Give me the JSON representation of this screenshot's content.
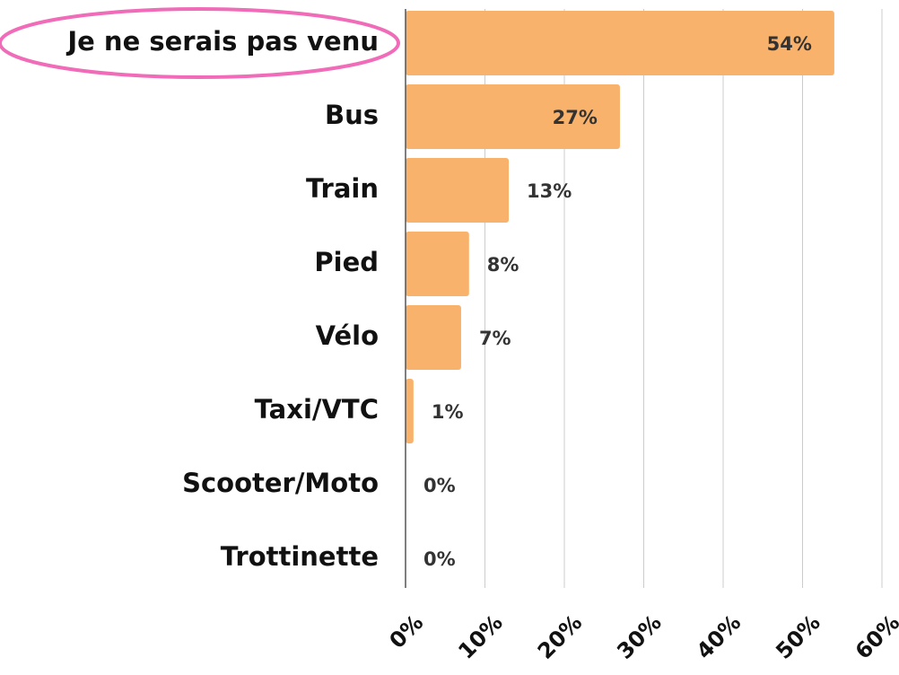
{
  "chart_data": {
    "type": "hbar",
    "categories": [
      "Je ne serais pas venu",
      "Bus",
      "Train",
      "Pied",
      "Vélo",
      "Taxi/VTC",
      "Scooter/Moto",
      "Trottinette"
    ],
    "values": [
      54,
      27,
      13,
      8,
      7,
      1,
      0,
      0
    ],
    "value_labels": [
      "54%",
      "27%",
      "13%",
      "8%",
      "7%",
      "1%",
      "0%",
      "0%"
    ],
    "color": "#f9b26b",
    "xlim": [
      0,
      60
    ],
    "xticks": [
      {
        "value": 0,
        "label": "0%"
      },
      {
        "value": 10,
        "label": "10%"
      },
      {
        "value": 20,
        "label": "20%"
      },
      {
        "value": 30,
        "label": "30%"
      },
      {
        "value": 40,
        "label": "40%"
      },
      {
        "value": 50,
        "label": "50%"
      },
      {
        "value": 60,
        "label": "60%"
      }
    ],
    "grid": true
  }
}
